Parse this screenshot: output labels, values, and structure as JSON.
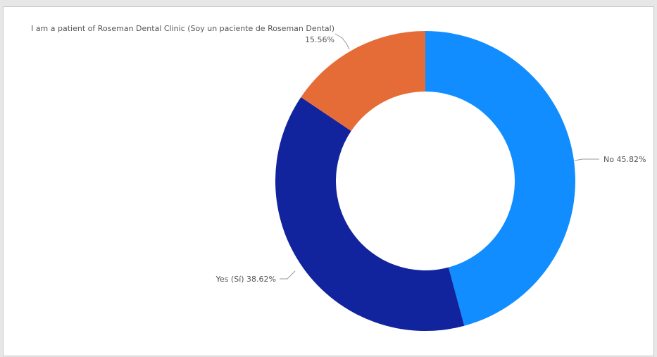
{
  "chart_data": {
    "type": "pie",
    "variant": "donut",
    "title": "",
    "legend": "none",
    "start_angle": "top, clockwise",
    "slices": [
      {
        "name": "No",
        "value": 45.82,
        "label": "No 45.82%",
        "color": "#118DFF"
      },
      {
        "name": "Yes (Sí)",
        "value": 38.62,
        "label": "Yes (Sí) 38.62%",
        "color": "#12239E"
      },
      {
        "name": "I am a patient of Roseman Dental Clinic (Soy un paciente de Roseman Dental)",
        "value": 15.56,
        "label_line1": "I am a patient of Roseman Dental Clinic (Soy un paciente de Roseman Dental)",
        "label_line2": "15.56%",
        "color": "#E66C37"
      }
    ]
  }
}
